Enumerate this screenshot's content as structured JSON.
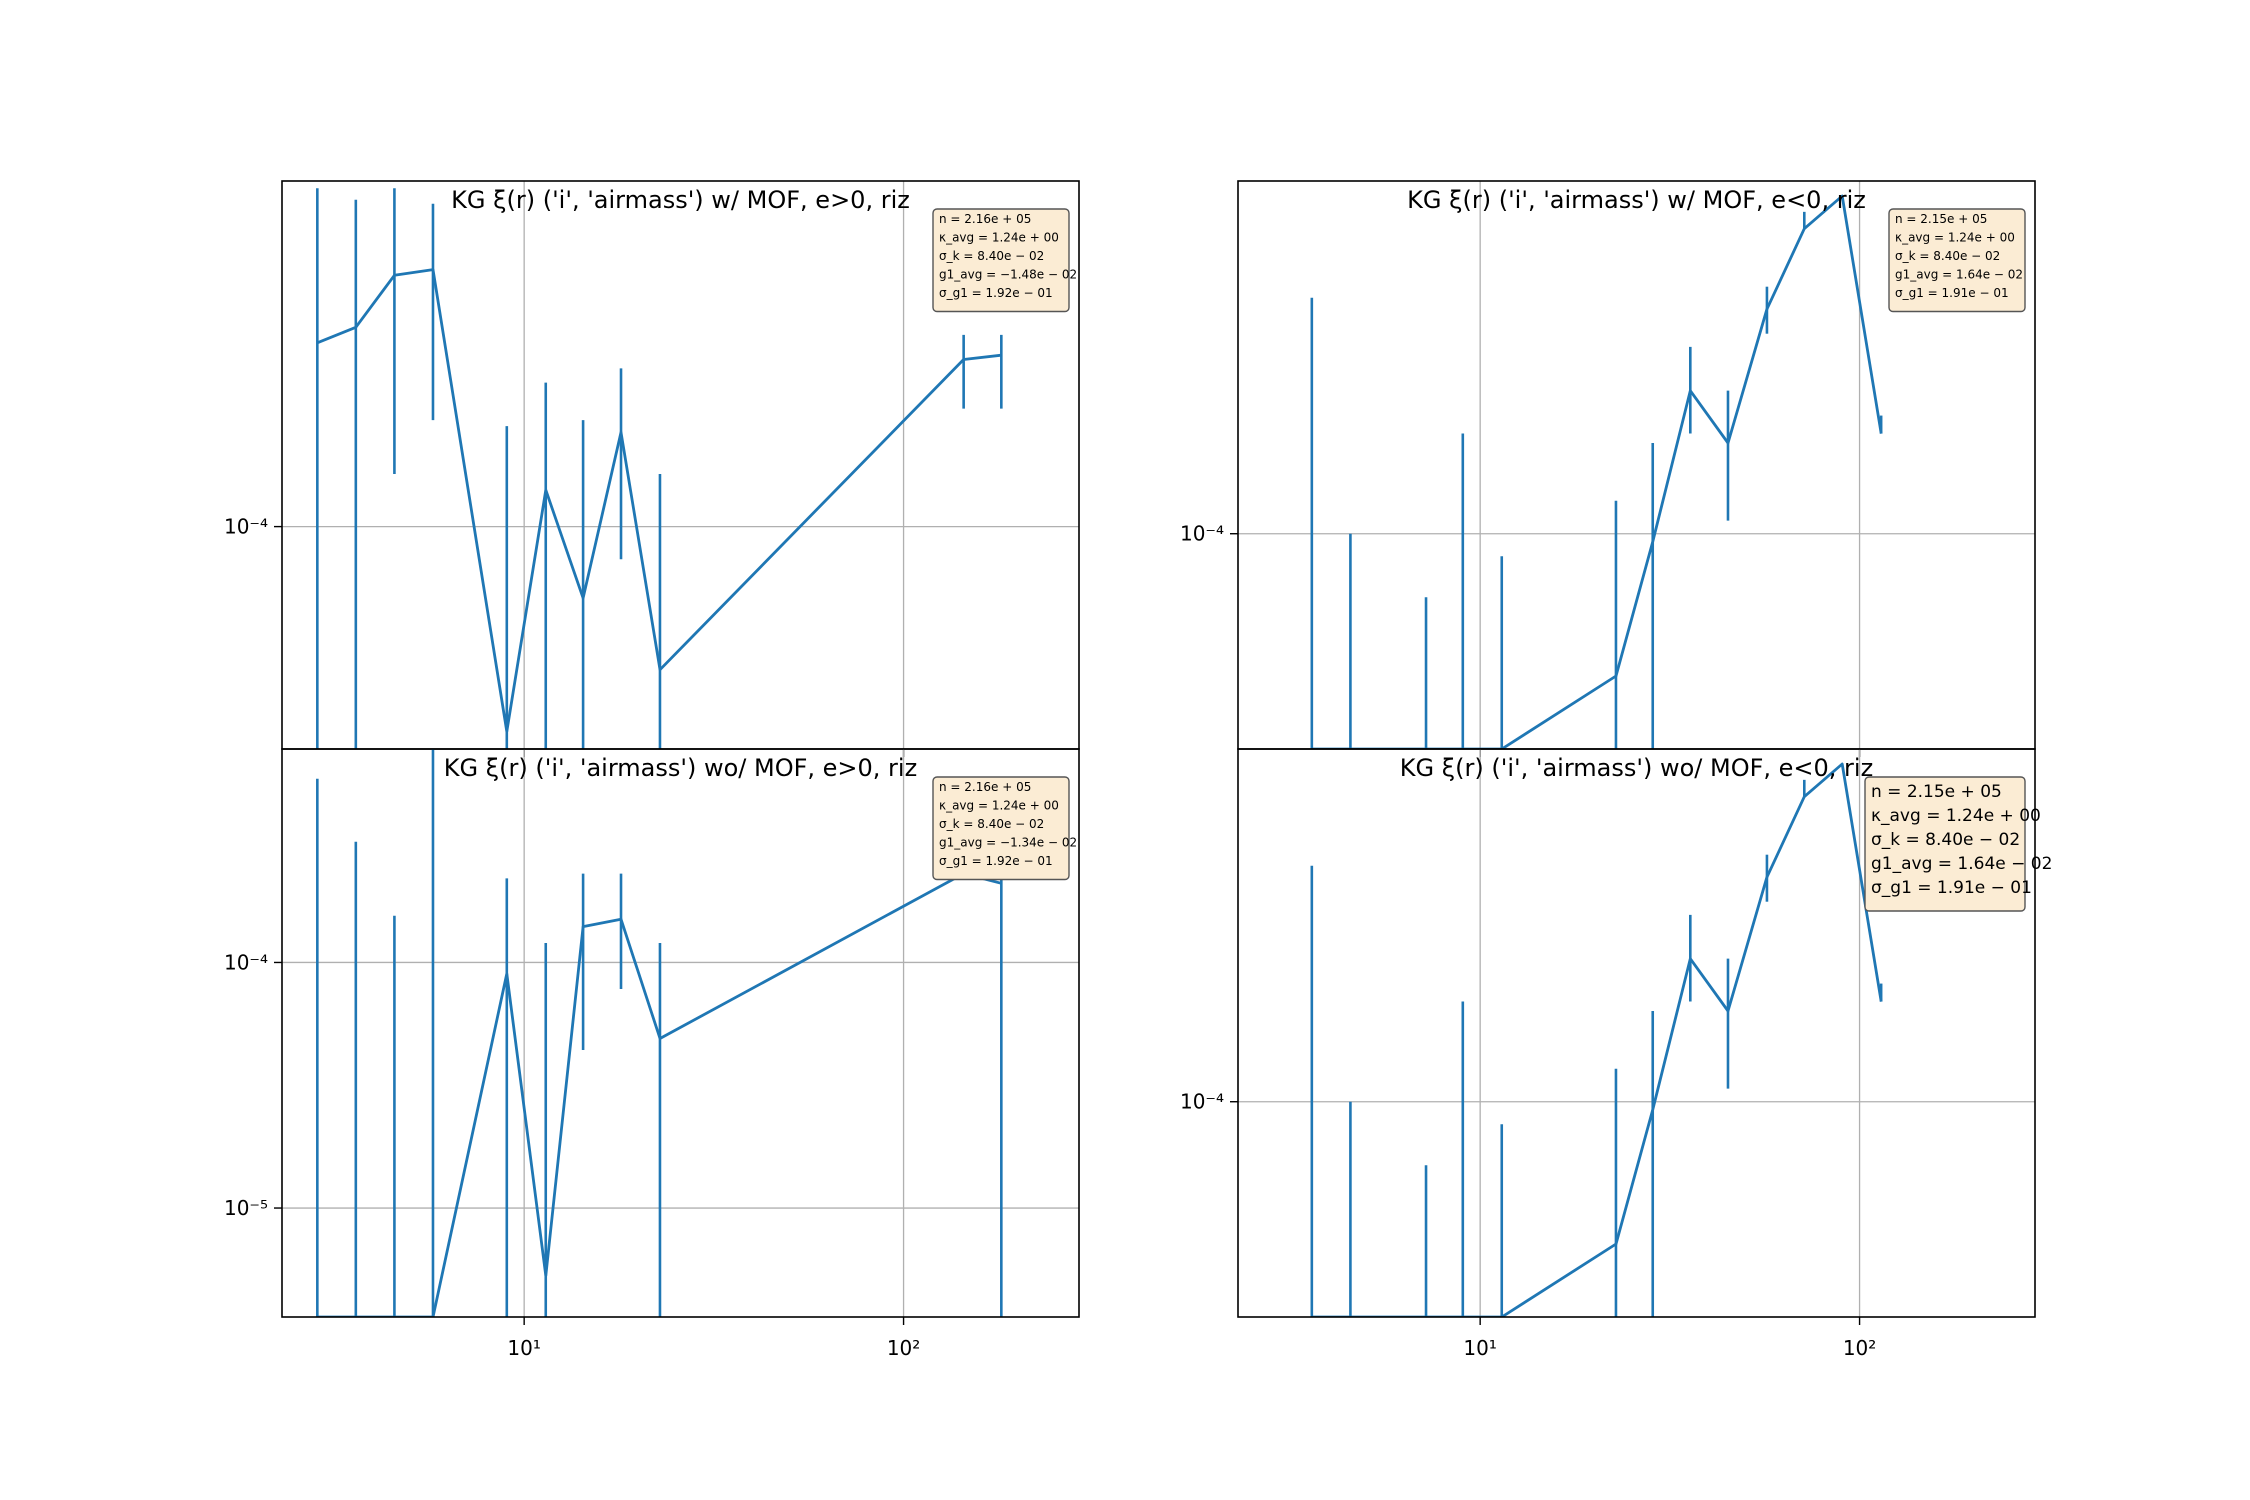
{
  "colors": {
    "series": "#1f77b4",
    "grid": "#b0b0b0",
    "legend_fill": "#fbecd4",
    "legend_edge": "#555555"
  },
  "chart_data": [
    {
      "type": "line",
      "title": "KG ξ(r) ('i', 'airmass') w/ MOF, e>0,  riz",
      "xscale": "log",
      "yscale": "log",
      "xlim": [
        2.3,
        290
      ],
      "ylim": [
        3.3e-05,
        0.00056
      ],
      "grid": true,
      "xticks": [
        10,
        100
      ],
      "xtick_labels": [
        "10¹",
        "10²"
      ],
      "yticks": [
        0.0001
      ],
      "ytick_labels": [
        "10⁻⁴"
      ],
      "x": [
        2.85,
        3.6,
        4.55,
        5.75,
        9.0,
        11.4,
        14.3,
        18.0,
        22.8,
        144,
        181
      ],
      "values": [
        0.00025,
        0.00027,
        0.00035,
        0.00036,
        3.6e-05,
        0.00012,
        7e-05,
        0.00016,
        4.9e-05,
        0.00023,
        0.000235
      ],
      "error_low": [
        3.3e-05,
        3.3e-05,
        0.00013,
        0.00017,
        3.3e-05,
        3.3e-05,
        3.3e-05,
        8.5e-05,
        3.3e-05,
        0.00018,
        0.00018
      ],
      "error_high": [
        0.00054,
        0.00051,
        0.00054,
        0.0005,
        0.000165,
        0.000205,
        0.00017,
        0.00022,
        0.00013,
        0.00026,
        0.00026
      ],
      "stats": [
        "n = 2.16e + 05",
        "κ_avg = 1.24e + 00",
        "σ_k = 8.40e − 02",
        "g1_avg = −1.48e − 02",
        "σ_g1 = 1.92e − 01"
      ],
      "stats_size": "small",
      "legend_placement": "top-right"
    },
    {
      "type": "line",
      "title": "KG ξ(r) ('i', 'airmass') w/ MOF, e<0,  riz",
      "xscale": "log",
      "yscale": "log",
      "xlim": [
        2.3,
        290
      ],
      "ylim": [
        4.5e-05,
        0.00037
      ],
      "grid": true,
      "xticks": [
        10,
        100
      ],
      "xtick_labels": [
        "10¹",
        "10²"
      ],
      "yticks": [
        0.0001
      ],
      "ytick_labels": [
        "10⁻⁴"
      ],
      "x": [
        3.6,
        4.55,
        7.2,
        9.0,
        11.4,
        22.8,
        28.5,
        35.8,
        45.0,
        57.0,
        71.5,
        90.0,
        114
      ],
      "values": [
        4.5e-05,
        4.5e-05,
        4.5e-05,
        4.5e-05,
        4.5e-05,
        5.9e-05,
        9.7e-05,
        0.00017,
        0.00014,
        0.00023,
        0.00031,
        0.00035,
        0.000145
      ],
      "error_low": [
        4.5e-05,
        4.5e-05,
        4.5e-05,
        4.5e-05,
        4.5e-05,
        4.5e-05,
        4.5e-05,
        0.000145,
        0.000105,
        0.00021,
        0.00031,
        0.00035,
        0.000145
      ],
      "error_high": [
        0.00024,
        0.0001,
        7.9e-05,
        0.000145,
        9.2e-05,
        0.000113,
        0.00014,
        0.0002,
        0.00017,
        0.00025,
        0.00033,
        0.00035,
        0.000155
      ],
      "stats": [
        "n = 2.15e + 05",
        "κ_avg = 1.24e + 00",
        "σ_k = 8.40e − 02",
        "g1_avg = 1.64e − 02",
        "σ_g1 = 1.91e − 01"
      ],
      "stats_size": "small",
      "legend_placement": "top-right"
    },
    {
      "type": "line",
      "title": "KG ξ(r) ('i', 'airmass') wo/ MOF, e>0,  riz",
      "xscale": "log",
      "yscale": "log",
      "xlim": [
        2.3,
        290
      ],
      "ylim": [
        3.6e-06,
        0.00074
      ],
      "grid": true,
      "xticks": [
        10,
        100
      ],
      "xtick_labels": [
        "10¹",
        "10²"
      ],
      "yticks": [
        0.0001,
        1e-05
      ],
      "ytick_labels": [
        "10⁻⁴",
        "10⁻⁵"
      ],
      "x": [
        2.85,
        3.6,
        4.55,
        5.75,
        9.0,
        11.4,
        14.3,
        18.0,
        22.8,
        144,
        181
      ],
      "values": [
        3.6e-06,
        3.6e-06,
        3.6e-06,
        3.6e-06,
        9e-05,
        5.3e-06,
        0.00014,
        0.00015,
        4.9e-05,
        0.00023,
        0.00021
      ],
      "error_low": [
        3.6e-06,
        3.6e-06,
        3.6e-06,
        3.6e-06,
        3.6e-06,
        3.6e-06,
        4.4e-05,
        7.8e-05,
        3.6e-06,
        0.00022,
        3.6e-06
      ],
      "error_high": [
        0.00056,
        0.00031,
        0.000155,
        0.00074,
        0.00022,
        0.00012,
        0.00023,
        0.00023,
        0.00012,
        0.00023,
        0.00022
      ],
      "stats": [
        "n = 2.16e + 05",
        "κ_avg = 1.24e + 00",
        "σ_k = 8.40e − 02",
        "g1_avg = −1.34e − 02",
        "σ_g1 = 1.92e − 01"
      ],
      "stats_size": "small",
      "legend_placement": "top-right"
    },
    {
      "type": "line",
      "title": "KG ξ(r) ('i', 'airmass') wo/ MOF, e<0,  riz",
      "xscale": "log",
      "yscale": "log",
      "xlim": [
        2.3,
        290
      ],
      "ylim": [
        4.5e-05,
        0.00037
      ],
      "grid": true,
      "xticks": [
        10,
        100
      ],
      "xtick_labels": [
        "10¹",
        "10²"
      ],
      "yticks": [
        0.0001
      ],
      "ytick_labels": [
        "10⁻⁴"
      ],
      "x": [
        3.6,
        4.55,
        7.2,
        9.0,
        11.4,
        22.8,
        28.5,
        35.8,
        45.0,
        57.0,
        71.5,
        90.0,
        114
      ],
      "values": [
        4.5e-05,
        4.5e-05,
        4.5e-05,
        4.5e-05,
        4.5e-05,
        5.9e-05,
        9.7e-05,
        0.00017,
        0.00014,
        0.00023,
        0.00031,
        0.00035,
        0.000145
      ],
      "error_low": [
        4.5e-05,
        4.5e-05,
        4.5e-05,
        4.5e-05,
        4.5e-05,
        4.5e-05,
        4.5e-05,
        0.000145,
        0.000105,
        0.00021,
        0.00031,
        0.00035,
        0.000145
      ],
      "error_high": [
        0.00024,
        0.0001,
        7.9e-05,
        0.000145,
        9.2e-05,
        0.000113,
        0.00014,
        0.0002,
        0.00017,
        0.00025,
        0.00033,
        0.00035,
        0.000155
      ],
      "stats": [
        "n = 2.15e + 05",
        "κ_avg = 1.24e + 00",
        "σ_k = 8.40e − 02",
        "g1_avg = 1.64e − 02",
        "σ_g1 = 1.91e − 01"
      ],
      "stats_size": "large",
      "legend_placement": "top-right"
    }
  ]
}
